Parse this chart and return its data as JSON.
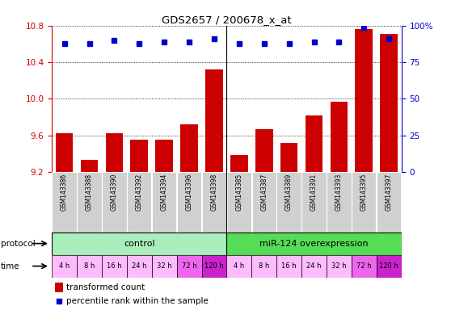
{
  "title": "GDS2657 / 200678_x_at",
  "samples": [
    "GSM143386",
    "GSM143388",
    "GSM143390",
    "GSM143392",
    "GSM143394",
    "GSM143396",
    "GSM143398",
    "GSM143385",
    "GSM143387",
    "GSM143389",
    "GSM143391",
    "GSM143393",
    "GSM143395",
    "GSM143397"
  ],
  "bar_values": [
    9.62,
    9.33,
    9.62,
    9.55,
    9.55,
    9.72,
    10.32,
    9.38,
    9.67,
    9.52,
    9.82,
    9.97,
    10.77,
    10.71
  ],
  "dot_pct": [
    88,
    88,
    90,
    88,
    89,
    89,
    91,
    88,
    88,
    88,
    89,
    89,
    99,
    91
  ],
  "bar_color": "#cc0000",
  "dot_color": "#0000cc",
  "ylim_left": [
    9.2,
    10.8
  ],
  "yticks_left": [
    9.2,
    9.6,
    10.0,
    10.4,
    10.8
  ],
  "yticks_right": [
    0,
    25,
    50,
    75,
    100
  ],
  "ylim_right": [
    0,
    100
  ],
  "protocol_control_color": "#aaeebb",
  "protocol_mir_color": "#55dd55",
  "time_colors": [
    "#ffbbff",
    "#ffbbff",
    "#ffbbff",
    "#ffbbff",
    "#ffbbff",
    "#ee66ee",
    "#cc22cc",
    "#ffbbff",
    "#ffbbff",
    "#ffbbff",
    "#ffbbff",
    "#ffbbff",
    "#ee66ee",
    "#cc22cc"
  ],
  "time_labels": [
    "4 h",
    "8 h",
    "16 h",
    "24 h",
    "32 h",
    "72 h",
    "120 h",
    "4 h",
    "8 h",
    "16 h",
    "24 h",
    "32 h",
    "72 h",
    "120 h"
  ],
  "protocol_labels": [
    "control",
    "miR-124 overexpression"
  ],
  "legend_bar_label": "transformed count",
  "legend_dot_label": "percentile rank within the sample",
  "background_color": "#ffffff",
  "gray_box_color": "#d0d0d0",
  "n_control": 7,
  "n_mir": 7
}
